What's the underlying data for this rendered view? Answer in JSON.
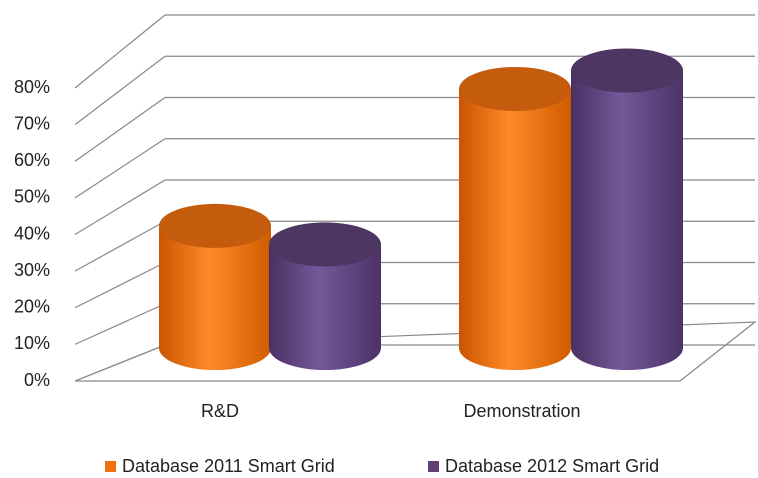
{
  "chart_data": {
    "type": "bar3d",
    "categories": [
      "R&D",
      "Demonstration"
    ],
    "series": [
      {
        "name": "Database 2011 Smart Grid",
        "color": "#f07010",
        "values": [
          33,
          70
        ]
      },
      {
        "name": "Database 2012 Smart Grid",
        "color": "#5e4277",
        "values": [
          28,
          75
        ]
      }
    ],
    "ylim": [
      0,
      80
    ],
    "yticks": [
      {
        "value": 0,
        "label": "0%"
      },
      {
        "value": 10,
        "label": "10%"
      },
      {
        "value": 20,
        "label": "20%"
      },
      {
        "value": 30,
        "label": "30%"
      },
      {
        "value": 40,
        "label": "40%"
      },
      {
        "value": 50,
        "label": "50%"
      },
      {
        "value": 60,
        "label": "60%"
      },
      {
        "value": 70,
        "label": "70%"
      },
      {
        "value": 80,
        "label": "80%"
      }
    ],
    "grid": true,
    "legend": "bottom"
  }
}
